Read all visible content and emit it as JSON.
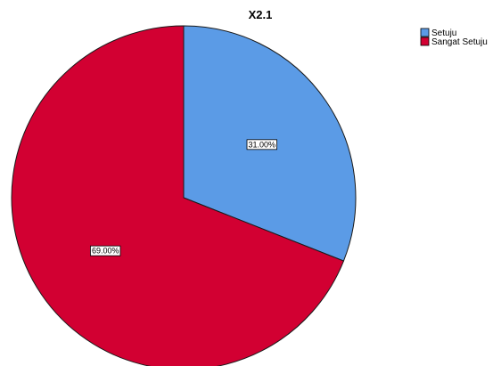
{
  "chart_data": {
    "type": "pie",
    "title": "X2.1",
    "categories": [
      "Setuju",
      "Sangat Setuju"
    ],
    "values": [
      31.0,
      69.0
    ],
    "labels": [
      "31.00%",
      "69.00%"
    ],
    "colors": [
      "#5b9be6",
      "#d20032"
    ],
    "start_angle_deg": 0,
    "direction": "clockwise",
    "legend_position": "top-right",
    "slice_border_color": "#1a1a1a"
  }
}
